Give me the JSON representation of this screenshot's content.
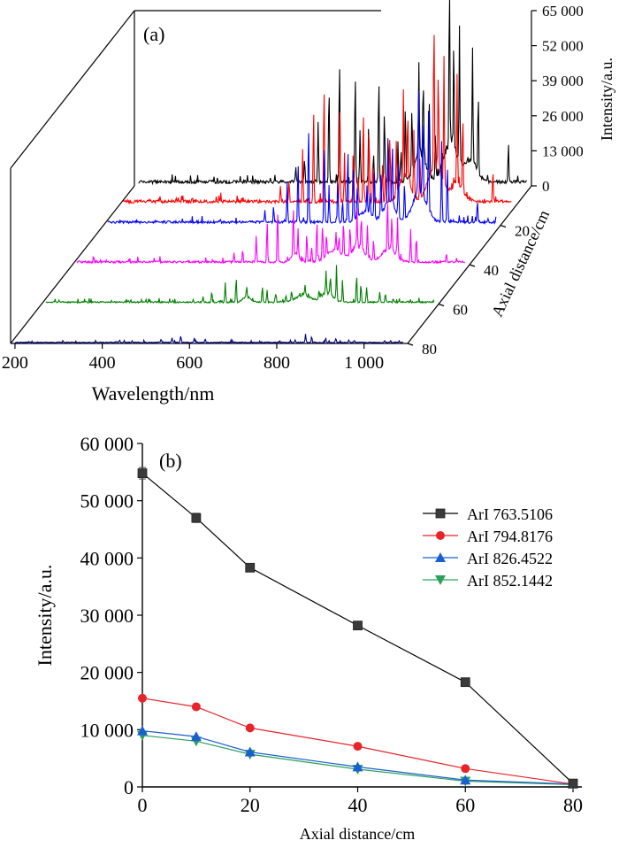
{
  "chart_data": [
    {
      "panel_label": "(a)",
      "type": "line",
      "view": "3d-waterfall",
      "xlabel": "Wavelength/nm",
      "ylabel": "Axial distance/cm",
      "zlabel": "Intensity/a.u.",
      "x_ticks": [
        "200",
        "400",
        "600",
        "800",
        "1 000"
      ],
      "y_ticks": [
        "20",
        "40",
        "60",
        "80"
      ],
      "z_ticks": [
        "0",
        "13 000",
        "26 000",
        "39 000",
        "52 000",
        "65 000"
      ],
      "xlim": [
        190,
        1100
      ],
      "zlim": [
        0,
        65000
      ],
      "series": [
        {
          "axial_distance": 0,
          "color": "#000000",
          "baseline": 1500,
          "humps": [
            [
              845,
              11000,
              18
            ],
            [
              915,
              15000,
              22
            ],
            [
              960,
              8000,
              20
            ]
          ],
          "peaks": [
            [
              560,
              6000
            ],
            [
              580,
              9000
            ],
            [
              611,
              22000
            ],
            [
              636,
              35000
            ],
            [
              660,
              48000
            ],
            [
              696,
              42000
            ],
            [
              707,
              19000
            ],
            [
              727,
              22000
            ],
            [
              738,
              11000
            ],
            [
              750,
              40000
            ],
            [
              763,
              28000
            ],
            [
              772,
              16000
            ],
            [
              794,
              15000
            ],
            [
              801,
              13000
            ],
            [
              811,
              30000
            ],
            [
              826,
              24000
            ],
            [
              842,
              35000
            ],
            [
              852,
              30000
            ],
            [
              866,
              26000
            ],
            [
              880,
              18000
            ],
            [
              912,
              61000
            ],
            [
              922,
              38000
            ],
            [
              935,
              50000
            ],
            [
              965,
              42000
            ],
            [
              978,
              30000
            ],
            [
              1047,
              14000
            ]
          ]
        },
        {
          "axial_distance": 10,
          "color": "#ff0000",
          "baseline": 1500,
          "humps": [
            [
              845,
              9000,
              18
            ],
            [
              915,
              14000,
              22
            ],
            [
              965,
              7000,
              20
            ]
          ],
          "peaks": [
            [
              560,
              6000
            ],
            [
              580,
              8000
            ],
            [
              611,
              20000
            ],
            [
              636,
              33000
            ],
            [
              660,
              45000
            ],
            [
              696,
              38000
            ],
            [
              707,
              18000
            ],
            [
              727,
              20000
            ],
            [
              738,
              10000
            ],
            [
              750,
              35000
            ],
            [
              763,
              28000
            ],
            [
              772,
              14000
            ],
            [
              794,
              13000
            ],
            [
              801,
              12000
            ],
            [
              811,
              25000
            ],
            [
              826,
              20000
            ],
            [
              842,
              33000
            ],
            [
              852,
              27000
            ],
            [
              866,
              24000
            ],
            [
              880,
              17000
            ],
            [
              912,
              54000
            ],
            [
              922,
              36000
            ],
            [
              935,
              46000
            ],
            [
              965,
              40000
            ],
            [
              978,
              28000
            ],
            [
              1047,
              12000
            ]
          ]
        },
        {
          "axial_distance": 20,
          "color": "#0000ff",
          "baseline": 1200,
          "humps": [
            [
              790,
              4000,
              22
            ],
            [
              845,
              8000,
              18
            ],
            [
              915,
              12000,
              22
            ]
          ],
          "peaks": [
            [
              560,
              4000
            ],
            [
              580,
              6000
            ],
            [
              611,
              15000
            ],
            [
              636,
              24000
            ],
            [
              660,
              38000
            ],
            [
              696,
              30000
            ],
            [
              707,
              14000
            ],
            [
              727,
              16000
            ],
            [
              738,
              8000
            ],
            [
              750,
              28000
            ],
            [
              763,
              21000
            ],
            [
              772,
              12000
            ],
            [
              794,
              10000
            ],
            [
              801,
              9000
            ],
            [
              811,
              19000
            ],
            [
              826,
              16000
            ],
            [
              842,
              24000
            ],
            [
              852,
              22000
            ],
            [
              866,
              20000
            ],
            [
              880,
              14000
            ],
            [
              912,
              40000
            ],
            [
              922,
              28000
            ],
            [
              935,
              36000
            ],
            [
              965,
              30000
            ],
            [
              978,
              22000
            ],
            [
              1047,
              8000
            ]
          ]
        },
        {
          "axial_distance": 40,
          "color": "#ff00ff",
          "baseline": 1000,
          "humps": [
            [
              700,
              3000,
              12
            ],
            [
              790,
              4500,
              25
            ],
            [
              845,
              6000,
              20
            ],
            [
              915,
              5000,
              22
            ]
          ],
          "peaks": [
            [
              560,
              3000
            ],
            [
              580,
              5000
            ],
            [
              611,
              10000
            ],
            [
              636,
              16000
            ],
            [
              660,
              20000
            ],
            [
              696,
              18000
            ],
            [
              707,
              10000
            ],
            [
              727,
              11000
            ],
            [
              738,
              6000
            ],
            [
              750,
              15000
            ],
            [
              763,
              13000
            ],
            [
              772,
              8000
            ],
            [
              794,
              7000
            ],
            [
              801,
              6000
            ],
            [
              811,
              12000
            ],
            [
              826,
              10000
            ],
            [
              842,
              14000
            ],
            [
              852,
              12000
            ],
            [
              866,
              12000
            ],
            [
              880,
              8000
            ],
            [
              912,
              18000
            ],
            [
              922,
              12000
            ],
            [
              935,
              14000
            ],
            [
              965,
              12000
            ],
            [
              978,
              9000
            ],
            [
              1047,
              3500
            ]
          ]
        },
        {
          "axial_distance": 60,
          "color": "#008000",
          "baseline": 700,
          "humps": [
            [
              660,
              2000,
              12
            ],
            [
              790,
              2500,
              25
            ],
            [
              845,
              3500,
              18
            ]
          ],
          "peaks": [
            [
              560,
              2000
            ],
            [
              580,
              3500
            ],
            [
              611,
              7500
            ],
            [
              636,
              9500
            ],
            [
              660,
              4000
            ],
            [
              696,
              6000
            ],
            [
              707,
              4500
            ],
            [
              727,
              3000
            ],
            [
              750,
              2500
            ],
            [
              763,
              3500
            ],
            [
              794,
              4000
            ],
            [
              826,
              3000
            ],
            [
              842,
              9000
            ],
            [
              852,
              6500
            ],
            [
              866,
              13000
            ],
            [
              880,
              7500
            ],
            [
              912,
              10000
            ],
            [
              922,
              7000
            ],
            [
              935,
              5500
            ],
            [
              965,
              4000
            ],
            [
              978,
              3500
            ]
          ]
        },
        {
          "axial_distance": 80,
          "color": "#000080",
          "baseline": 400,
          "humps": [],
          "peaks": [
            [
              440,
              800
            ],
            [
              535,
              1200
            ],
            [
              560,
              1800
            ],
            [
              580,
              2500
            ],
            [
              611,
              1800
            ],
            [
              636,
              1200
            ],
            [
              842,
              1000
            ],
            [
              866,
              3000
            ],
            [
              880,
              2200
            ],
            [
              912,
              1500
            ],
            [
              935,
              1200
            ],
            [
              965,
              900
            ],
            [
              978,
              800
            ],
            [
              1047,
              600
            ]
          ]
        }
      ]
    },
    {
      "panel_label": "(b)",
      "type": "line",
      "xlabel": "Axial distance/cm",
      "ylabel": "Intensity/a.u.",
      "xlim": [
        0,
        80
      ],
      "ylim": [
        0,
        60000
      ],
      "x_ticks": [
        "0",
        "20",
        "40",
        "60",
        "80"
      ],
      "y_ticks": [
        "0",
        "10 000",
        "20 000",
        "30 000",
        "40 000",
        "50 000",
        "60 000"
      ],
      "legend_position": "top-right",
      "series": [
        {
          "name": "ArI 763.5106",
          "color": "#3a3a3a",
          "marker": "square",
          "x": [
            0,
            10,
            20,
            40,
            60,
            80
          ],
          "y": [
            54800,
            47000,
            38300,
            28200,
            18300,
            600
          ],
          "error": [
            1000,
            800,
            700,
            300,
            300,
            100
          ]
        },
        {
          "name": "ArI 794.8176",
          "color": "#e8242a",
          "marker": "circle",
          "x": [
            0,
            10,
            20,
            40,
            60,
            80
          ],
          "y": [
            15500,
            14000,
            10300,
            7100,
            3200,
            500
          ],
          "error": [
            0,
            0,
            0,
            0,
            0,
            0
          ]
        },
        {
          "name": "ArI 826.4522",
          "color": "#1a5fd0",
          "marker": "triangle-up",
          "x": [
            0,
            10,
            20,
            40,
            60,
            80
          ],
          "y": [
            9800,
            8800,
            6100,
            3500,
            1200,
            500
          ],
          "error": [
            0,
            0,
            0,
            0,
            0,
            0
          ]
        },
        {
          "name": "ArI 852.1442",
          "color": "#2aa05a",
          "marker": "triangle-down",
          "x": [
            0,
            10,
            20,
            40,
            60,
            80
          ],
          "y": [
            9000,
            8000,
            5700,
            3100,
            1000,
            400
          ],
          "error": [
            0,
            0,
            0,
            0,
            0,
            0
          ]
        }
      ]
    }
  ]
}
